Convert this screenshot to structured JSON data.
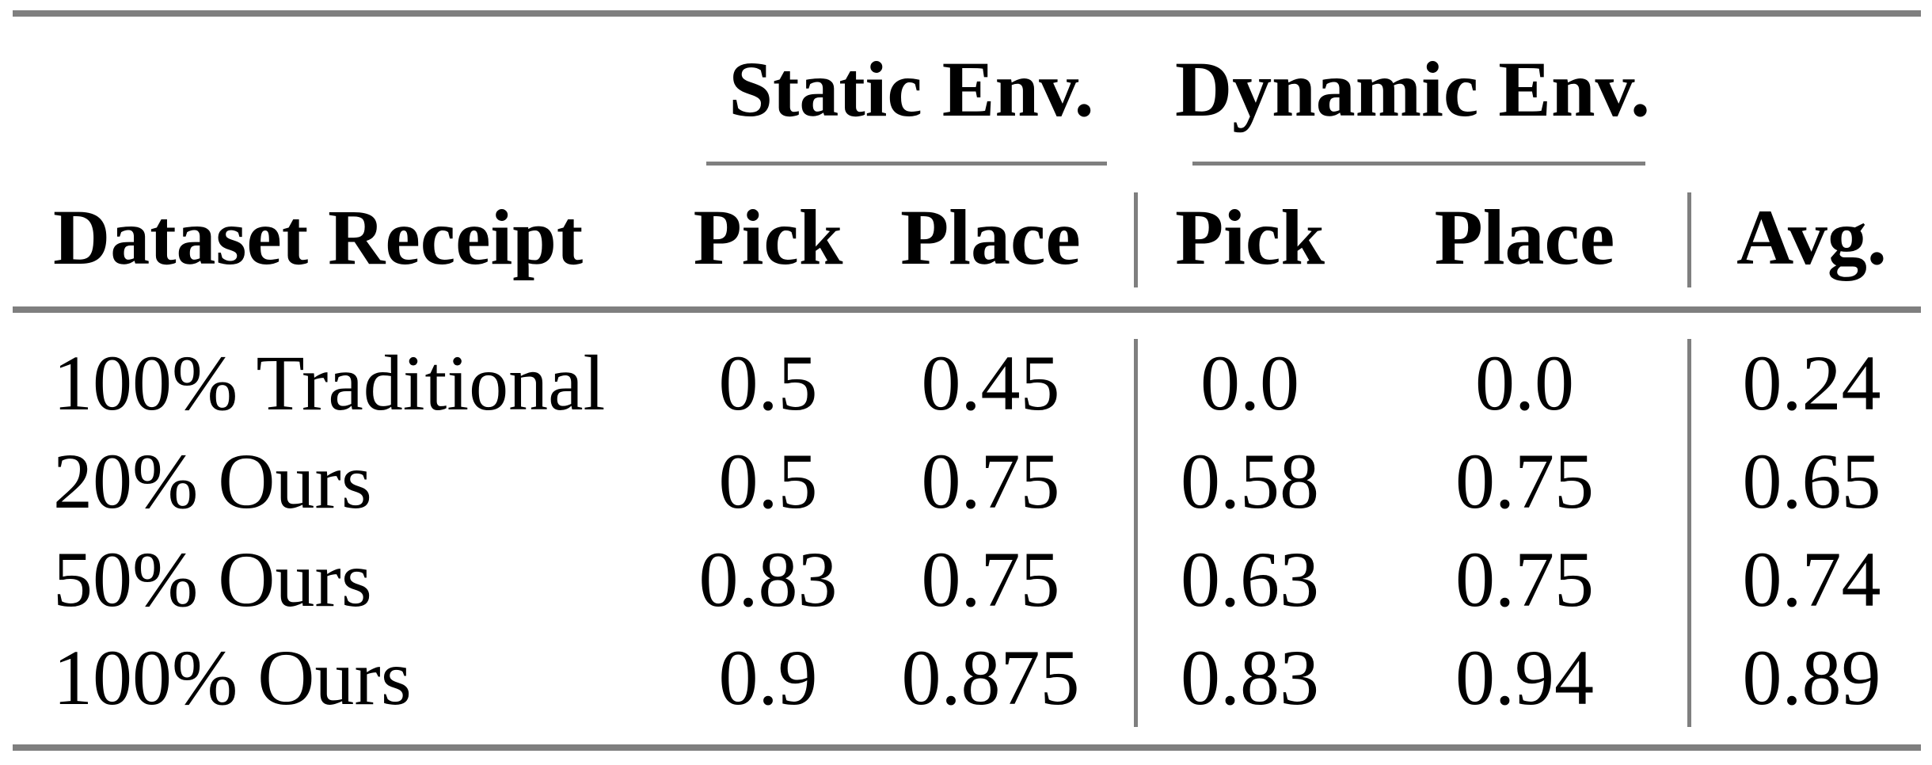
{
  "colors": {
    "rule": "#7f7f7f",
    "text": "#000000",
    "background": "#ffffff"
  },
  "table": {
    "spanners": [
      {
        "label": "Static Env."
      },
      {
        "label": "Dynamic Env."
      }
    ],
    "header": {
      "row_label": "Dataset Receipt",
      "static_pick": "Pick",
      "static_place": "Place",
      "dynamic_pick": "Pick",
      "dynamic_place": "Place",
      "avg": "Avg."
    },
    "rows": [
      {
        "label": "100% Traditional",
        "values": [
          "0.5",
          "0.45",
          "0.0",
          "0.0",
          "0.24"
        ]
      },
      {
        "label": "20% Ours",
        "values": [
          "0.5",
          "0.75",
          "0.58",
          "0.75",
          "0.65"
        ]
      },
      {
        "label": "50% Ours",
        "values": [
          "0.83",
          "0.75",
          "0.63",
          "0.75",
          "0.74"
        ]
      },
      {
        "label": "100% Ours",
        "values": [
          "0.9",
          "0.875",
          "0.83",
          "0.94",
          "0.89"
        ]
      }
    ]
  }
}
